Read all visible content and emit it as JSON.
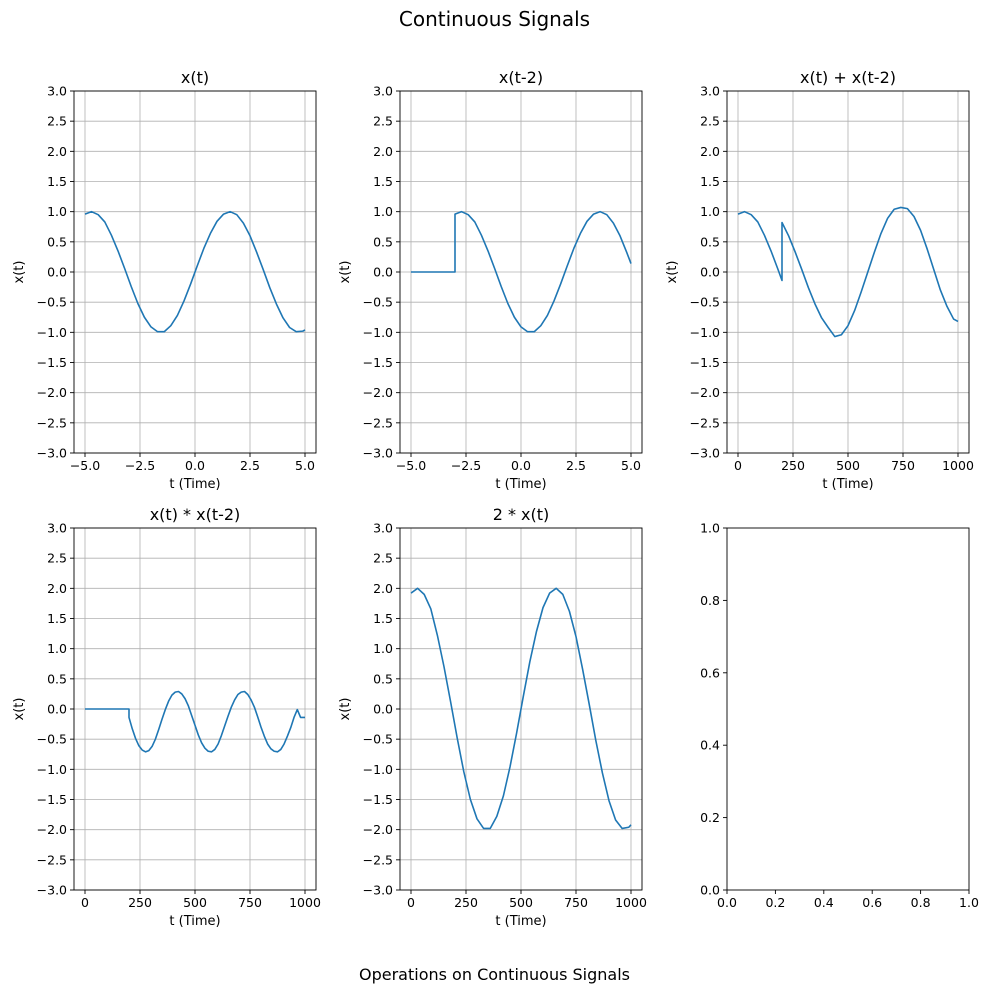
{
  "figure": {
    "suptitle": "Continuous Signals",
    "footer": "Operations on Continuous Signals"
  },
  "colors": {
    "line": "#1f77b4",
    "grid": "#b0b0b0",
    "axis": "#000000",
    "background": "#ffffff"
  },
  "chart_data": [
    {
      "type": "line",
      "title": "x(t)",
      "xlabel": "t (Time)",
      "ylabel": "x(t)",
      "xlim": [
        -5.5,
        5.5
      ],
      "ylim": [
        -3,
        3
      ],
      "grid": true,
      "xticks": [
        -5,
        -2.5,
        0,
        2.5,
        5
      ],
      "xtick_labels": [
        "−5.0",
        "−2.5",
        "0.0",
        "2.5",
        "5.0"
      ],
      "yticks": [
        -3,
        -2.5,
        -2,
        -1.5,
        -1,
        -0.5,
        0,
        0.5,
        1,
        1.5,
        2,
        2.5,
        3
      ],
      "ytick_labels": [
        "−3.0",
        "−2.5",
        "−2.0",
        "−1.5",
        "−1.0",
        "−0.5",
        "0.0",
        "0.5",
        "1.0",
        "1.5",
        "2.0",
        "2.5",
        "3.0"
      ],
      "series": [
        {
          "x": [
            -5.0,
            -4.7,
            -4.4,
            -4.1,
            -3.8,
            -3.5,
            -3.2,
            -2.9,
            -2.6,
            -2.3,
            -2.0,
            -1.7,
            -1.4,
            -1.1,
            -0.8,
            -0.5,
            -0.2,
            0.1,
            0.4,
            0.7,
            1.0,
            1.3,
            1.6,
            1.9,
            2.2,
            2.5,
            2.8,
            3.1,
            3.4,
            3.7,
            4.0,
            4.3,
            4.6,
            4.9,
            5.0
          ],
          "y": [
            0.96,
            1.0,
            0.95,
            0.83,
            0.61,
            0.35,
            0.06,
            -0.24,
            -0.52,
            -0.75,
            -0.91,
            -0.99,
            -0.99,
            -0.89,
            -0.72,
            -0.48,
            -0.2,
            0.1,
            0.39,
            0.64,
            0.84,
            0.96,
            1.0,
            0.95,
            0.81,
            0.6,
            0.33,
            0.04,
            -0.26,
            -0.53,
            -0.76,
            -0.92,
            -0.99,
            -0.98,
            -0.96
          ]
        }
      ]
    },
    {
      "type": "line",
      "title": "x(t-2)",
      "xlabel": "t (Time)",
      "ylabel": "x(t)",
      "xlim": [
        -5.5,
        5.5
      ],
      "ylim": [
        -3,
        3
      ],
      "grid": true,
      "xticks": [
        -5,
        -2.5,
        0,
        2.5,
        5
      ],
      "xtick_labels": [
        "−5.0",
        "−2.5",
        "0.0",
        "2.5",
        "5.0"
      ],
      "yticks": [
        -3,
        -2.5,
        -2,
        -1.5,
        -1,
        -0.5,
        0,
        0.5,
        1,
        1.5,
        2,
        2.5,
        3
      ],
      "ytick_labels": [
        "−3.0",
        "−2.5",
        "−2.0",
        "−1.5",
        "−1.0",
        "−0.5",
        "0.0",
        "0.5",
        "1.0",
        "1.5",
        "2.0",
        "2.5",
        "3.0"
      ],
      "series": [
        {
          "x": [
            -5.0,
            -3.0,
            -3.0,
            -2.7,
            -2.4,
            -2.1,
            -1.8,
            -1.5,
            -1.2,
            -0.9,
            -0.6,
            -0.3,
            0.0,
            0.3,
            0.6,
            0.9,
            1.2,
            1.5,
            1.8,
            2.1,
            2.4,
            2.7,
            3.0,
            3.3,
            3.6,
            3.9,
            4.2,
            4.5,
            4.8,
            5.0
          ],
          "y": [
            0.0,
            0.0,
            0.96,
            1.0,
            0.95,
            0.83,
            0.61,
            0.35,
            0.06,
            -0.24,
            -0.52,
            -0.75,
            -0.91,
            -0.99,
            -0.99,
            -0.89,
            -0.72,
            -0.48,
            -0.2,
            0.1,
            0.39,
            0.64,
            0.84,
            0.96,
            1.0,
            0.95,
            0.81,
            0.6,
            0.33,
            0.14
          ]
        }
      ]
    },
    {
      "type": "line",
      "title": "x(t) + x(t-2)",
      "xlabel": "t (Time)",
      "ylabel": "x(t)",
      "xlim": [
        -50,
        1050
      ],
      "ylim": [
        -3,
        3
      ],
      "grid": true,
      "xticks": [
        0,
        250,
        500,
        750,
        1000
      ],
      "xtick_labels": [
        "0",
        "250",
        "500",
        "750",
        "1000"
      ],
      "yticks": [
        -3,
        -2.5,
        -2,
        -1.5,
        -1,
        -0.5,
        0,
        0.5,
        1,
        1.5,
        2,
        2.5,
        3
      ],
      "ytick_labels": [
        "−3.0",
        "−2.5",
        "−2.0",
        "−1.5",
        "−1.0",
        "−0.5",
        "0.0",
        "0.5",
        "1.0",
        "1.5",
        "2.0",
        "2.5",
        "3.0"
      ],
      "series": [
        {
          "x": [
            0,
            30,
            60,
            90,
            120,
            150,
            180,
            200,
            200,
            230,
            260,
            290,
            320,
            350,
            380,
            410,
            440,
            470,
            500,
            530,
            560,
            590,
            620,
            650,
            680,
            710,
            740,
            770,
            800,
            830,
            860,
            890,
            920,
            950,
            980,
            1000
          ],
          "y": [
            0.96,
            1.0,
            0.95,
            0.83,
            0.61,
            0.35,
            0.06,
            -0.14,
            0.82,
            0.6,
            0.33,
            0.04,
            -0.26,
            -0.53,
            -0.76,
            -0.92,
            -1.07,
            -1.04,
            -0.89,
            -0.64,
            -0.33,
            0.0,
            0.33,
            0.64,
            0.89,
            1.04,
            1.07,
            1.05,
            0.92,
            0.69,
            0.38,
            0.04,
            -0.3,
            -0.57,
            -0.78,
            -0.82
          ]
        }
      ]
    },
    {
      "type": "line",
      "title": "x(t) * x(t-2)",
      "xlabel": "t (Time)",
      "ylabel": "x(t)",
      "xlim": [
        -50,
        1050
      ],
      "ylim": [
        -3,
        3
      ],
      "grid": true,
      "xticks": [
        0,
        250,
        500,
        750,
        1000
      ],
      "xtick_labels": [
        "0",
        "250",
        "500",
        "750",
        "1000"
      ],
      "yticks": [
        -3,
        -2.5,
        -2,
        -1.5,
        -1,
        -0.5,
        0,
        0.5,
        1,
        1.5,
        2,
        2.5,
        3
      ],
      "ytick_labels": [
        "−3.0",
        "−2.5",
        "−2.0",
        "−1.5",
        "−1.0",
        "−0.5",
        "0.0",
        "0.5",
        "1.0",
        "1.5",
        "2.0",
        "2.5",
        "3.0"
      ],
      "series": [
        {
          "x": [
            0,
            200,
            200,
            215,
            230,
            245,
            260,
            275,
            290,
            305,
            320,
            335,
            350,
            365,
            380,
            395,
            410,
            425,
            440,
            455,
            470,
            485,
            500,
            515,
            530,
            545,
            560,
            575,
            590,
            605,
            620,
            635,
            650,
            665,
            680,
            695,
            710,
            725,
            740,
            755,
            770,
            785,
            800,
            815,
            830,
            845,
            860,
            875,
            890,
            905,
            920,
            935,
            950,
            965,
            980,
            1000
          ],
          "y": [
            0.0,
            0.0,
            -0.14,
            -0.33,
            -0.49,
            -0.61,
            -0.68,
            -0.71,
            -0.69,
            -0.62,
            -0.5,
            -0.34,
            -0.17,
            -0.01,
            0.13,
            0.23,
            0.28,
            0.29,
            0.25,
            0.17,
            0.05,
            -0.11,
            -0.27,
            -0.43,
            -0.56,
            -0.65,
            -0.7,
            -0.71,
            -0.67,
            -0.58,
            -0.44,
            -0.28,
            -0.12,
            0.03,
            0.15,
            0.24,
            0.28,
            0.29,
            0.24,
            0.15,
            0.03,
            -0.13,
            -0.3,
            -0.45,
            -0.58,
            -0.66,
            -0.7,
            -0.71,
            -0.67,
            -0.58,
            -0.45,
            -0.31,
            -0.14,
            -0.01,
            -0.14,
            -0.14
          ]
        }
      ]
    },
    {
      "type": "line",
      "title": "2 * x(t)",
      "xlabel": "t (Time)",
      "ylabel": "x(t)",
      "xlim": [
        -50,
        1050
      ],
      "ylim": [
        -3,
        3
      ],
      "grid": true,
      "xticks": [
        0,
        250,
        500,
        750,
        1000
      ],
      "xtick_labels": [
        "0",
        "250",
        "500",
        "750",
        "1000"
      ],
      "yticks": [
        -3,
        -2.5,
        -2,
        -1.5,
        -1,
        -0.5,
        0,
        0.5,
        1,
        1.5,
        2,
        2.5,
        3
      ],
      "ytick_labels": [
        "−3.0",
        "−2.5",
        "−2.0",
        "−1.5",
        "−1.0",
        "−0.5",
        "0.0",
        "0.5",
        "1.0",
        "1.5",
        "2.0",
        "2.5",
        "3.0"
      ],
      "series": [
        {
          "x": [
            0,
            30,
            60,
            90,
            120,
            150,
            180,
            210,
            240,
            270,
            300,
            330,
            360,
            390,
            420,
            450,
            480,
            510,
            540,
            570,
            600,
            630,
            660,
            690,
            720,
            750,
            780,
            810,
            840,
            870,
            900,
            930,
            960,
            990,
            1000
          ],
          "y": [
            1.92,
            2.0,
            1.9,
            1.66,
            1.22,
            0.7,
            0.12,
            -0.48,
            -1.04,
            -1.5,
            -1.82,
            -1.98,
            -1.98,
            -1.78,
            -1.44,
            -0.96,
            -0.4,
            0.2,
            0.78,
            1.28,
            1.68,
            1.92,
            2.0,
            1.9,
            1.62,
            1.2,
            0.66,
            0.08,
            -0.52,
            -1.06,
            -1.52,
            -1.84,
            -1.98,
            -1.96,
            -1.92
          ]
        }
      ]
    },
    {
      "type": "line",
      "title": "",
      "xlabel": "",
      "ylabel": "",
      "xlim": [
        0,
        1
      ],
      "ylim": [
        0,
        1
      ],
      "grid": false,
      "xticks": [
        0,
        0.2,
        0.4,
        0.6,
        0.8,
        1.0
      ],
      "xtick_labels": [
        "0.0",
        "0.2",
        "0.4",
        "0.6",
        "0.8",
        "1.0"
      ],
      "yticks": [
        0,
        0.2,
        0.4,
        0.6,
        0.8,
        1.0
      ],
      "ytick_labels": [
        "0.0",
        "0.2",
        "0.4",
        "0.6",
        "0.8",
        "1.0"
      ],
      "series": []
    }
  ]
}
